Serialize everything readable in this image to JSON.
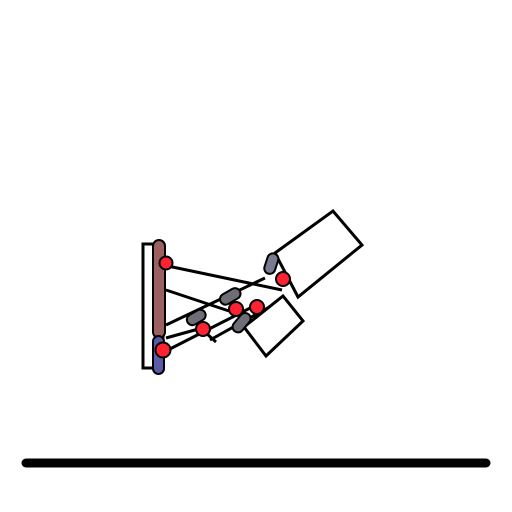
{
  "scene": {
    "colors": {
      "background": "#ffffff",
      "outline": "#000000",
      "ground": "#000000",
      "joint": "#ff2233",
      "actuator_dark": "#6e6e76",
      "actuator_violet": "#7a7a92",
      "actuator_blue": "#5a5aa8",
      "spine": "#9b6060",
      "body_fill": "#ffffff"
    },
    "icons": {
      "joint": "red-circle-joint",
      "actuator": "rounded-capsule-actuator",
      "ground": "thick-black-line"
    }
  }
}
